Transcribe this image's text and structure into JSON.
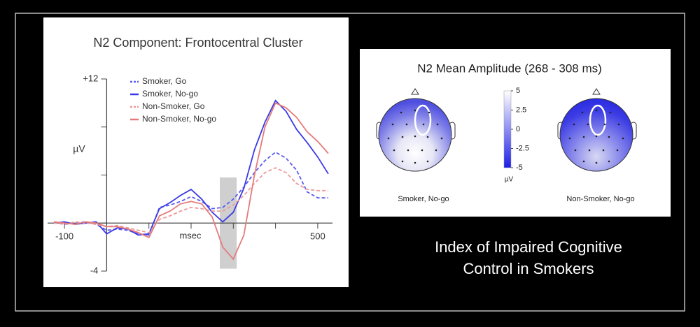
{
  "chart_data": [
    {
      "type": "line",
      "title": "N2 Component: Frontocentral Cluster",
      "x_label": "msec",
      "y_label": "µV",
      "x": [
        -125,
        -100,
        -75,
        -50,
        -25,
        0,
        25,
        50,
        75,
        100,
        125,
        150,
        175,
        200,
        225,
        250,
        275,
        300,
        325,
        350,
        375,
        400,
        425,
        450,
        475,
        500,
        525
      ],
      "series": [
        {
          "name": "Smoker, Go",
          "color": "#5b5bef",
          "dashed": true,
          "values": [
            0.1,
            -0.1,
            0,
            0.1,
            -0.1,
            -0.6,
            -0.5,
            -0.6,
            -0.9,
            -1.0,
            1.3,
            1.5,
            1.8,
            2.2,
            1.8,
            1.2,
            1.3,
            2.0,
            3.0,
            4.2,
            5.2,
            5.9,
            5.4,
            4.4,
            2.6,
            2.1,
            2.1
          ]
        },
        {
          "name": "Smoker, No-go",
          "color": "#3a3ae6",
          "dashed": false,
          "values": [
            0,
            0.1,
            -0.1,
            0,
            0.1,
            -0.9,
            -0.4,
            -0.5,
            -1.0,
            -0.9,
            1.2,
            1.7,
            2.3,
            2.8,
            2.0,
            0.9,
            0.1,
            0.9,
            2.9,
            6.1,
            8.4,
            10.2,
            9.3,
            7.8,
            6.7,
            5.5,
            4.1
          ]
        },
        {
          "name": "Non-Smoker, Go",
          "color": "#ec9a9a",
          "dashed": true,
          "values": [
            0,
            -0.1,
            0.1,
            0,
            -0.1,
            -0.3,
            -0.2,
            -0.4,
            -0.6,
            -0.8,
            0.3,
            0.6,
            1.0,
            1.3,
            1.2,
            1.0,
            1.0,
            1.5,
            2.3,
            3.3,
            4.2,
            4.6,
            4.2,
            3.3,
            2.8,
            2.7,
            2.7
          ]
        },
        {
          "name": "Non-Smoker, No-go",
          "color": "#e57b7b",
          "dashed": false,
          "values": [
            0.1,
            0,
            -0.1,
            0.1,
            0,
            -0.3,
            -0.3,
            -0.5,
            -0.8,
            -1.2,
            0.6,
            1.0,
            1.6,
            1.8,
            1.6,
            0.5,
            -2.0,
            -3.0,
            -1.0,
            4.0,
            8.0,
            10.0,
            9.6,
            8.8,
            7.6,
            6.8,
            5.8
          ]
        }
      ],
      "xlim": [
        -140,
        535
      ],
      "ylim": [
        -4,
        12
      ],
      "xticks": [
        -100,
        500
      ],
      "xticks_minor": [
        100,
        200,
        300,
        400
      ],
      "yticks": [
        {
          "value": 12,
          "label": "+12"
        },
        {
          "value": -4,
          "label": "-4"
        }
      ],
      "yticks_minor": [
        8,
        4,
        0
      ],
      "highlight": {
        "x": [
          268,
          308
        ],
        "y": [
          -3.8,
          3.8
        ],
        "color": "#cfcfcf"
      },
      "legend": "upper left"
    },
    {
      "type": "topomap",
      "title": "N2 Mean Amplitude (268 - 308 ms)",
      "maps": [
        {
          "label": "Smoker, No-go"
        },
        {
          "label": "Non-Smoker, No-go"
        }
      ],
      "colorbar": {
        "lim": [
          -5,
          5
        ],
        "ticks": [
          5,
          2.5,
          0,
          -2.5,
          -5
        ],
        "label": "µV",
        "colormap": [
          "#1e1ee8",
          "#ffffff"
        ]
      }
    }
  ],
  "caption": {
    "lines": [
      "Index of Impaired Cognitive",
      "Control in Smokers"
    ]
  }
}
